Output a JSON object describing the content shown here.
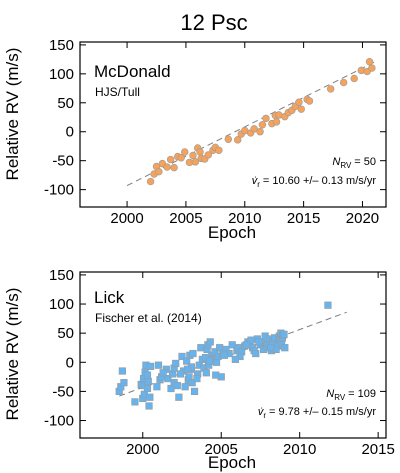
{
  "figure": {
    "title": "12 Psc"
  },
  "colors": {
    "mcdonald_marker": "#f5a35c",
    "lick_marker": "#66b3ee",
    "marker_edge": "#9a9a9a",
    "fit_line": "#7f7f7f"
  },
  "chart_data": [
    {
      "type": "scatter",
      "panel": "McDonald",
      "source": "HJS/Tull",
      "marker": "circle",
      "xlabel": "Epoch",
      "ylabel": "Relative RV (m/s)",
      "xlim": [
        1996.0,
        2022.0
      ],
      "ylim": [
        -130,
        155
      ],
      "xticks": [
        2000,
        2005,
        2010,
        2015,
        2020
      ],
      "yticks": [
        -100,
        -50,
        0,
        50,
        100,
        150
      ],
      "n_rv_label": "N",
      "n_rv_sub": "RV",
      "n_rv_value": "= 50",
      "slope_label": "v̇",
      "slope_sub": "r",
      "slope_value": "= 10.60 +/– 0.13 m/s/yr",
      "fit": {
        "x": [
          2000.0,
          2021.0
        ],
        "y": [
          -93.0,
          120.0
        ]
      },
      "x": [
        2002.0,
        2002.3,
        2002.5,
        2002.7,
        2003.0,
        2003.4,
        2003.7,
        2004.0,
        2004.3,
        2004.6,
        2004.9,
        2005.3,
        2005.6,
        2005.8,
        2006.0,
        2006.2,
        2006.3,
        2006.6,
        2006.9,
        2007.3,
        2007.5,
        2007.8,
        2008.6,
        2009.4,
        2009.7,
        2010.0,
        2010.5,
        2010.8,
        2011.3,
        2011.5,
        2011.8,
        2012.3,
        2012.6,
        2012.7,
        2012.9,
        2013.4,
        2013.7,
        2014.0,
        2014.3,
        2014.6,
        2014.8,
        2015.3,
        2015.5,
        2017.3,
        2018.4,
        2019.3,
        2019.9,
        2020.4,
        2020.6,
        2020.8
      ],
      "y": [
        -86,
        -73,
        -60,
        -69,
        -55,
        -61,
        -48,
        -62,
        -43,
        -45,
        -35,
        -53,
        -41,
        -52,
        -28,
        -35,
        -46,
        -47,
        -40,
        -32,
        -27,
        -32,
        -13,
        -14,
        -4,
        2,
        -2,
        5,
        0,
        12,
        23,
        14,
        28,
        17,
        29,
        26,
        33,
        37,
        44,
        51,
        39,
        56,
        53,
        74,
        85,
        92,
        106,
        104,
        121,
        110
      ]
    },
    {
      "type": "scatter",
      "panel": "Lick",
      "source": "Fischer et al. (2014)",
      "marker": "square",
      "xlabel": "Epoch",
      "ylabel": "Relative RV (m/s)",
      "xlim": [
        1996.0,
        2015.5
      ],
      "ylim": [
        -130,
        155
      ],
      "xticks": [
        2000,
        2005,
        2010,
        2015
      ],
      "yticks": [
        -100,
        -50,
        0,
        50,
        100,
        150
      ],
      "n_rv_label": "N",
      "n_rv_sub": "RV",
      "n_rv_value": "= 109",
      "slope_label": "v̇",
      "slope_sub": "r",
      "slope_value": "= 9.78 +/– 0.15 m/s/yr",
      "fit": {
        "x": [
          1998.5,
          2013.0
        ],
        "y": [
          -58.0,
          86.0
        ]
      },
      "x": [
        1998.5,
        1998.6,
        1998.7,
        1998.8,
        1999.5,
        1999.9,
        2000.0,
        2000.05,
        2000.1,
        2000.1,
        2000.15,
        2000.2,
        2000.3,
        2000.3,
        2000.4,
        2000.45,
        2000.5,
        2000.9,
        2001.0,
        2001.1,
        2001.2,
        2001.5,
        2001.6,
        2001.8,
        2001.9,
        2002.0,
        2002.0,
        2002.1,
        2002.2,
        2002.3,
        2002.5,
        2002.6,
        2002.7,
        2002.8,
        2002.9,
        2002.95,
        2003.0,
        2003.05,
        2003.1,
        2003.2,
        2003.3,
        2003.5,
        2003.6,
        2003.7,
        2003.8,
        2003.9,
        2004.0,
        2004.05,
        2004.1,
        2004.15,
        2004.2,
        2004.3,
        2004.4,
        2004.5,
        2004.6,
        2004.7,
        2004.8,
        2004.9,
        2005.0,
        2005.1,
        2005.3,
        2005.5,
        2005.7,
        2006.0,
        2006.1,
        2006.3,
        2006.5,
        2006.7,
        2006.8,
        2006.9,
        2007.0,
        2007.1,
        2007.3,
        2007.5,
        2007.6,
        2007.7,
        2007.8,
        2007.9,
        2008.0,
        2008.1,
        2008.2,
        2008.3,
        2008.4,
        2008.6,
        2008.7,
        2008.75,
        2008.8,
        2008.85,
        2008.9,
        2008.95,
        2009.0,
        2009.05,
        2011.8,
        2002.4,
        2003.15,
        2004.25,
        2005.2,
        2006.2,
        2007.2,
        2008.5,
        2000.35,
        2001.3,
        2002.85,
        2003.45,
        2004.65,
        2005.9,
        2006.6,
        2007.4,
        2008.15
      ],
      "y": [
        -50,
        -42,
        -15,
        -35,
        -68,
        -38,
        -62,
        -28,
        -40,
        -55,
        -17,
        -5,
        -22,
        -45,
        -75,
        -60,
        -7,
        -42,
        -5,
        -30,
        -25,
        -12,
        -28,
        -45,
        -20,
        -10,
        -35,
        -2,
        -40,
        -60,
        10,
        -15,
        -42,
        2,
        -30,
        -25,
        12,
        -12,
        -8,
        15,
        -50,
        -20,
        -5,
        25,
        5,
        -10,
        8,
        -18,
        22,
        30,
        -5,
        35,
        12,
        5,
        18,
        0,
        10,
        25,
        -25,
        15,
        22,
        15,
        30,
        20,
        25,
        18,
        28,
        35,
        30,
        38,
        25,
        20,
        40,
        30,
        35,
        22,
        45,
        28,
        32,
        40,
        20,
        35,
        42,
        28,
        45,
        38,
        50,
        30,
        42,
        47,
        48,
        25,
        98,
        -20,
        -35,
        2,
        12,
        10,
        15,
        22,
        -33,
        -18,
        -12,
        -28,
        -22,
        5,
        30,
        35,
        25
      ]
    }
  ]
}
